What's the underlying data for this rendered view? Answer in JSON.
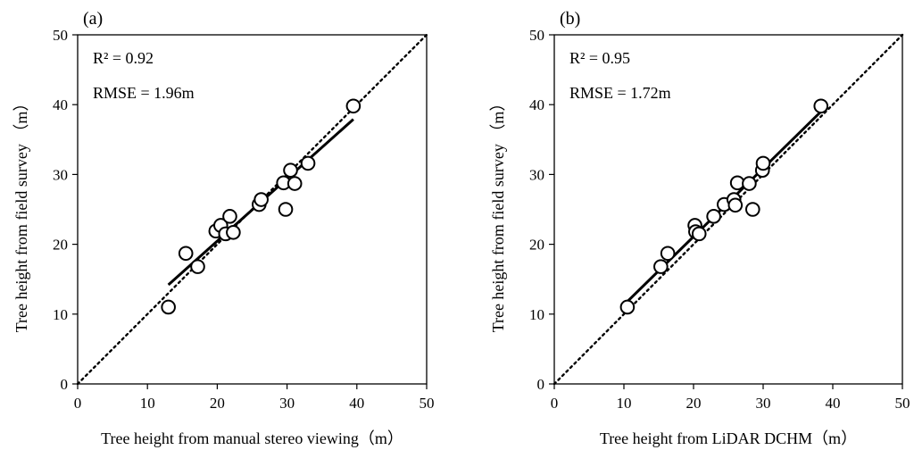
{
  "chart_data": [
    {
      "type": "scatter",
      "panel_label": "(a)",
      "xlabel": "Tree height from manual stereo viewing（m）",
      "ylabel": "Tree height from field survey （m）",
      "xlim": [
        0,
        50
      ],
      "ylim": [
        0,
        50
      ],
      "xticks": [
        "0",
        "10",
        "20",
        "30",
        "40",
        "50"
      ],
      "yticks": [
        "0",
        "10",
        "20",
        "30",
        "40",
        "50"
      ],
      "r2_text": "R² = 0.92",
      "rmse_text": "RMSE = 1.96m",
      "points": [
        [
          13.0,
          11.0
        ],
        [
          15.5,
          18.7
        ],
        [
          17.2,
          16.8
        ],
        [
          19.8,
          21.9
        ],
        [
          20.5,
          22.7
        ],
        [
          21.2,
          21.5
        ],
        [
          21.8,
          24.0
        ],
        [
          22.3,
          21.7
        ],
        [
          26.0,
          25.7
        ],
        [
          26.3,
          26.4
        ],
        [
          29.5,
          28.8
        ],
        [
          29.8,
          25.0
        ],
        [
          30.5,
          30.6
        ],
        [
          31.1,
          28.7
        ],
        [
          33.0,
          31.6
        ],
        [
          39.5,
          39.8
        ]
      ],
      "fit_line": [
        [
          13.0,
          14.2
        ],
        [
          39.5,
          37.9
        ]
      ],
      "reference_line": [
        [
          0,
          0
        ],
        [
          50,
          50
        ]
      ]
    },
    {
      "type": "scatter",
      "panel_label": "(b)",
      "xlabel": "Tree height from LiDAR DCHM（m）",
      "ylabel": "Tree height from field survey （m）",
      "xlim": [
        0,
        50
      ],
      "ylim": [
        0,
        50
      ],
      "xticks": [
        "0",
        "10",
        "20",
        "30",
        "40",
        "50"
      ],
      "yticks": [
        "0",
        "10",
        "20",
        "30",
        "40",
        "50"
      ],
      "r2_text": "R² = 0.95",
      "rmse_text": "RMSE = 1.72m",
      "points": [
        [
          10.5,
          11.0
        ],
        [
          15.3,
          16.8
        ],
        [
          16.3,
          18.7
        ],
        [
          20.2,
          22.7
        ],
        [
          20.3,
          21.8
        ],
        [
          20.8,
          21.5
        ],
        [
          22.9,
          24.0
        ],
        [
          24.4,
          25.7
        ],
        [
          25.8,
          26.4
        ],
        [
          26.0,
          25.6
        ],
        [
          26.3,
          28.8
        ],
        [
          28.0,
          28.7
        ],
        [
          28.5,
          25.0
        ],
        [
          29.9,
          30.6
        ],
        [
          30.0,
          31.6
        ],
        [
          38.3,
          39.8
        ]
      ],
      "fit_line": [
        [
          10.5,
          11.8
        ],
        [
          38.3,
          39.0
        ]
      ],
      "reference_line": [
        [
          0,
          0
        ],
        [
          50,
          50
        ]
      ]
    }
  ]
}
